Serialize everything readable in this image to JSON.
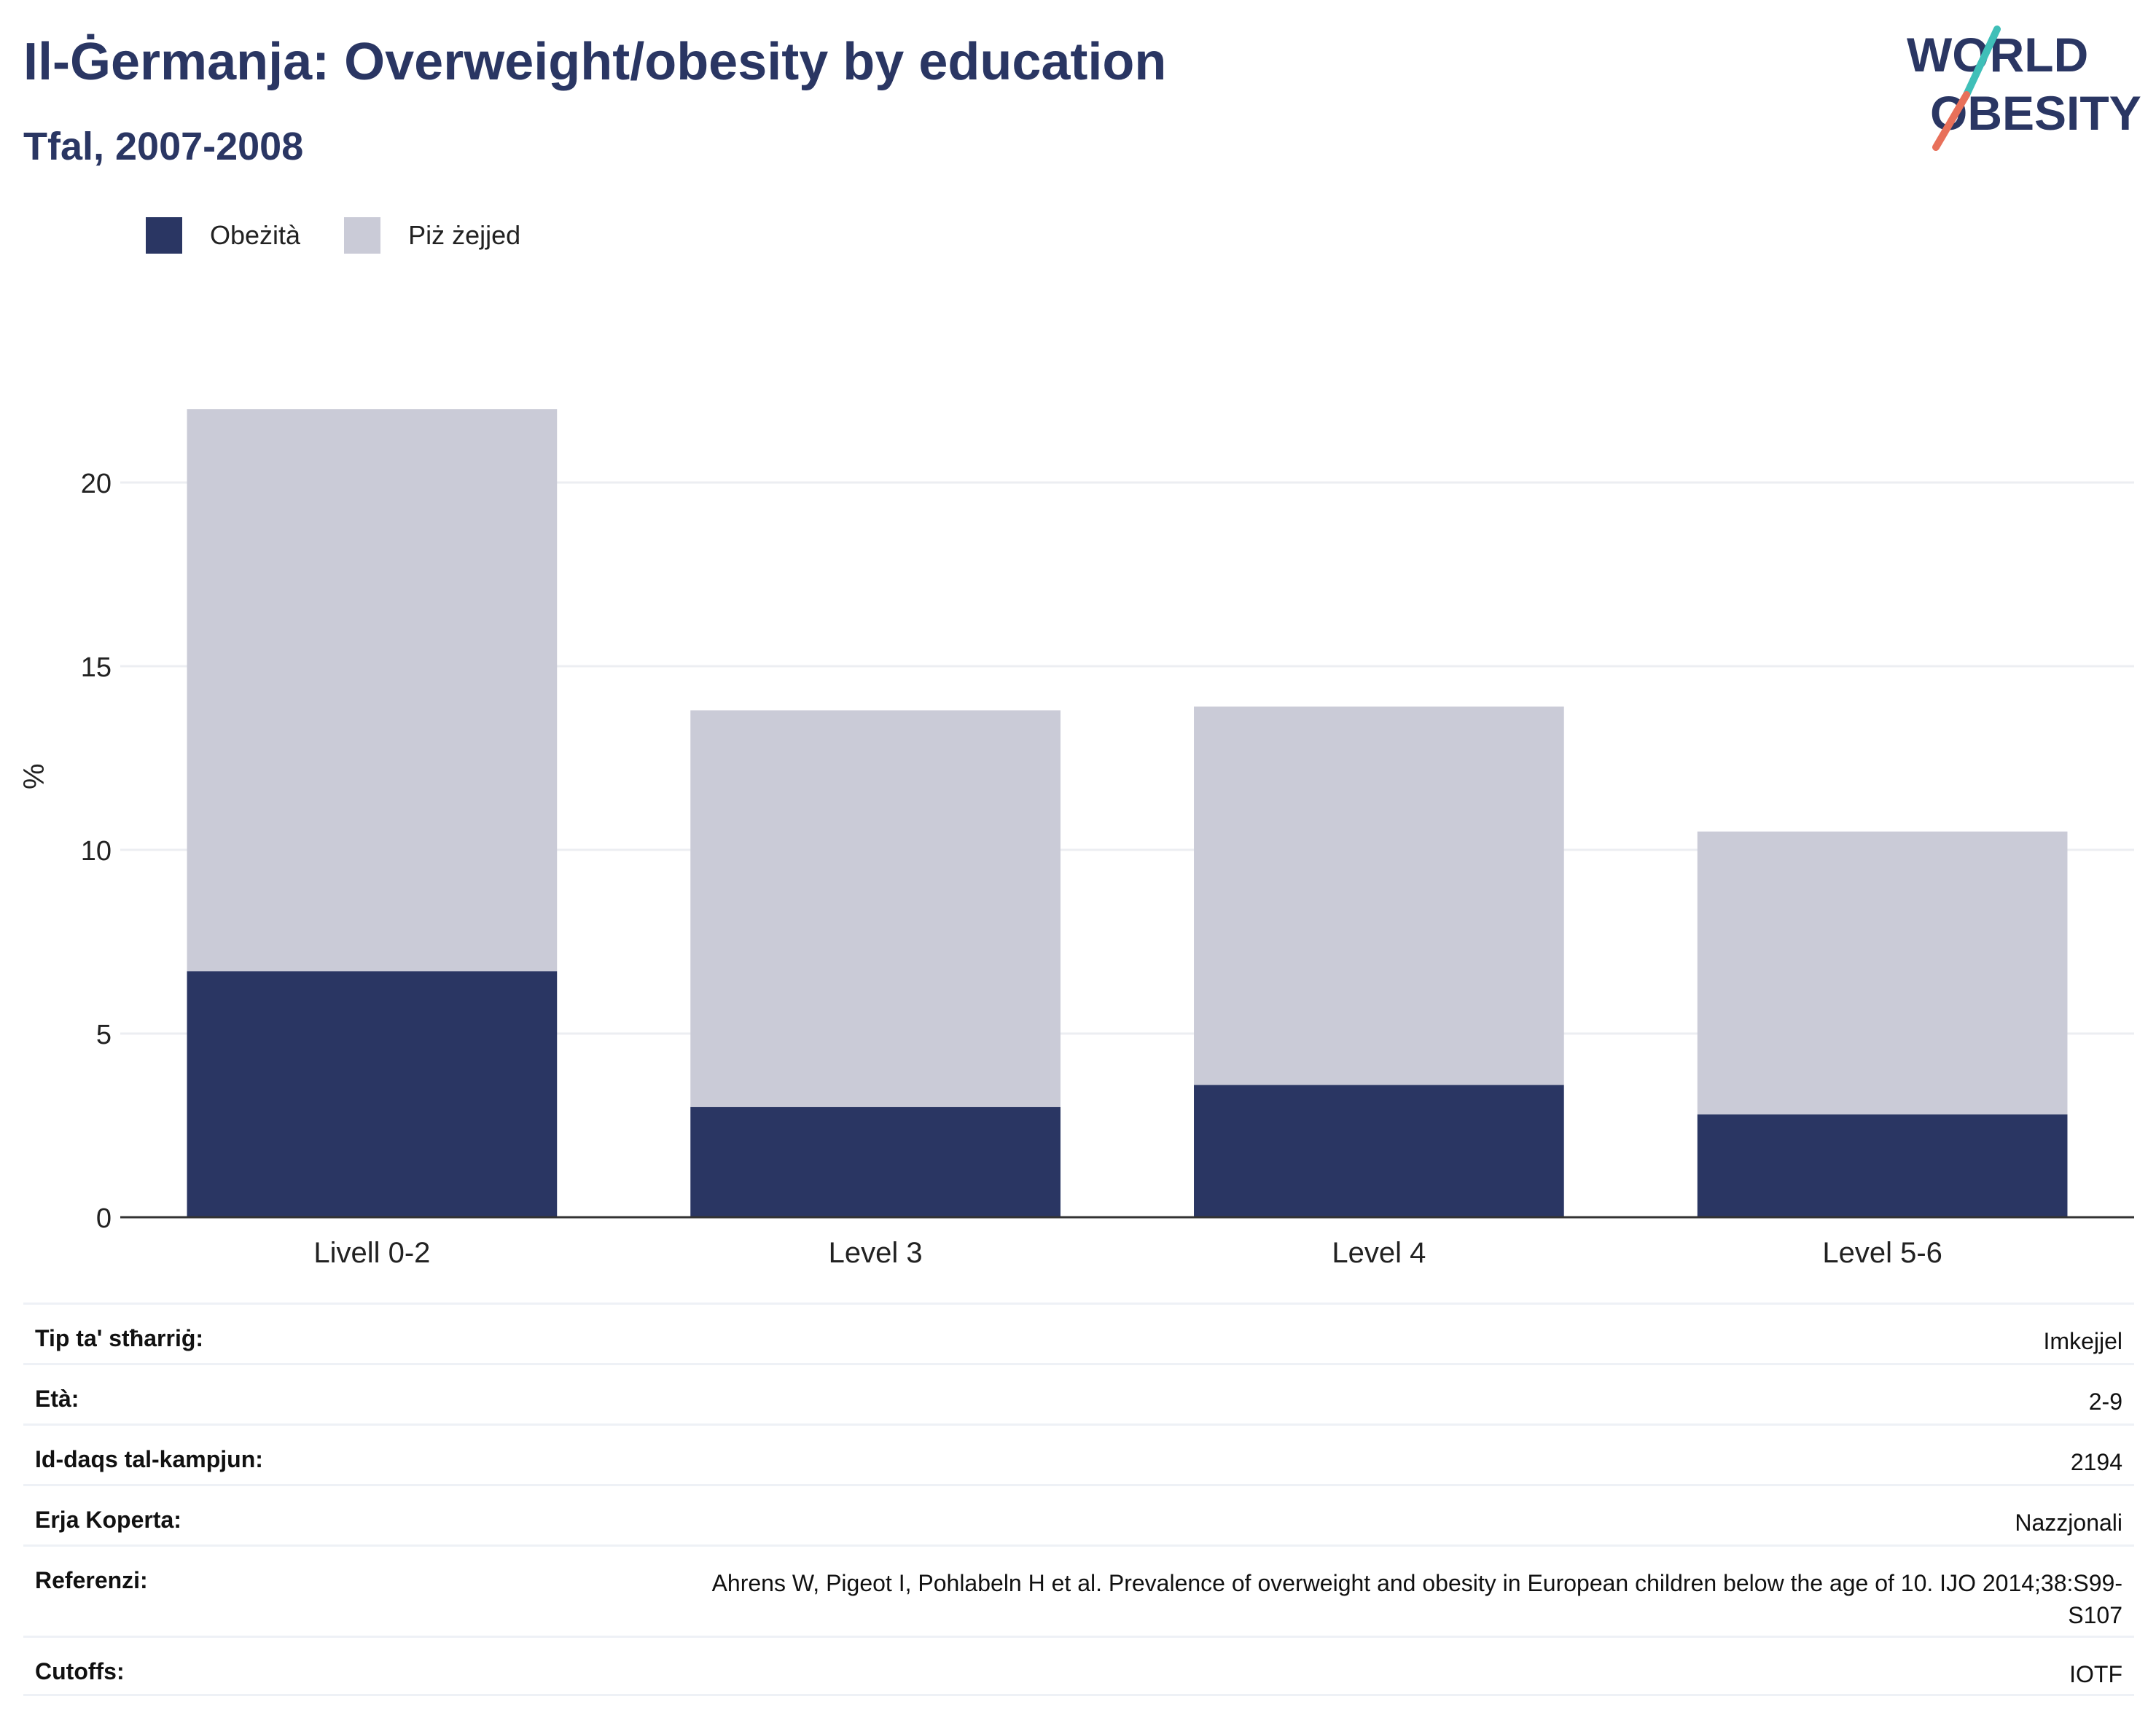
{
  "header": {
    "title": "Il-Ġermanja: Overweight/obesity by education",
    "subtitle": "Tfal, 2007-2008"
  },
  "logo": {
    "line1": "WORLD",
    "line2": "OBESITY",
    "slash_colors": [
      "#3fbfb8",
      "#e8705a"
    ]
  },
  "legend": {
    "items": [
      {
        "label": "Obeżità",
        "color": "#2a3663"
      },
      {
        "label": "Piż żejjed",
        "color": "#cacbd7"
      }
    ]
  },
  "chart_data": {
    "type": "bar",
    "stacked": true,
    "categories": [
      "Livell 0-2",
      "Level 3",
      "Level 4",
      "Level 5-6"
    ],
    "series": [
      {
        "name": "Obeżità",
        "color": "#2a3663",
        "values": [
          6.7,
          3.0,
          3.6,
          2.8
        ]
      },
      {
        "name": "Piż żejjed",
        "color": "#cacbd7",
        "values": [
          15.3,
          10.8,
          10.3,
          7.7
        ]
      }
    ],
    "ylabel": "%",
    "ylim": [
      0,
      23
    ],
    "yticks": [
      0,
      5,
      10,
      15,
      20
    ],
    "grid": true,
    "legend_position": "top-left"
  },
  "info": {
    "rows": [
      {
        "label": "Tip ta' stħarriġ:",
        "value": "Imkejjel"
      },
      {
        "label": "Età:",
        "value": "2-9"
      },
      {
        "label": "Id-daqs tal-kampjun:",
        "value": "2194"
      },
      {
        "label": "Erja Koperta:",
        "value": "Nazzjonali"
      },
      {
        "label": "Referenzi:",
        "value": "Ahrens W, Pigeot I, Pohlabeln H et al. Prevalence of overweight and obesity in European children below the age of 10. IJO 2014;38:S99-S107"
      },
      {
        "label": "Cutoffs:",
        "value": "IOTF"
      }
    ]
  }
}
